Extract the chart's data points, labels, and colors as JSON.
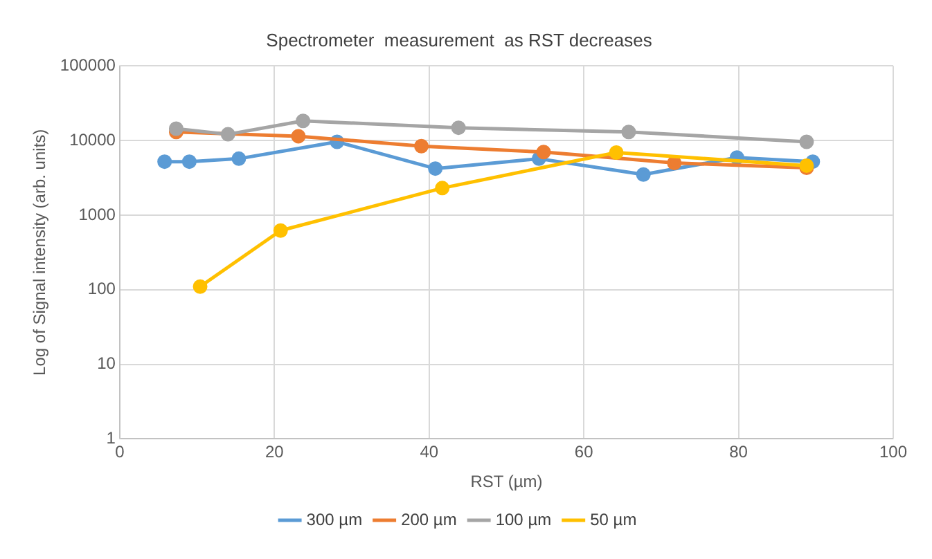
{
  "chart_data": {
    "type": "line",
    "title": "Spectrometer  measurement  as RST decreases",
    "xlabel": "RST (µm)",
    "ylabel": "Log of Signal intensity (arb. units)",
    "log": "y",
    "grid": true,
    "legend": "bottom",
    "marker": "circle",
    "line_style": "solid",
    "xlim": [
      0,
      100
    ],
    "xticks": [
      0,
      20,
      40,
      60,
      80,
      100
    ],
    "ylim": [
      1,
      100000
    ],
    "yticks": [
      1,
      10,
      100,
      1000,
      10000,
      100000
    ],
    "series": [
      {
        "name": "300 µm",
        "color": "#5b9bd5",
        "x": [
          5.8,
          9.0,
          15.4,
          28.1,
          40.8,
          54.2,
          67.7,
          79.8,
          89.6
        ],
        "values": [
          5200,
          5200,
          5700,
          9600,
          4200,
          5700,
          3500,
          5900,
          5200
        ]
      },
      {
        "name": "200 µm",
        "color": "#ed7d31",
        "x": [
          7.3,
          23.1,
          39.0,
          54.8,
          71.7,
          88.8
        ],
        "values": [
          13000,
          11400,
          8400,
          7000,
          5000,
          4300
        ]
      },
      {
        "name": "100 µm",
        "color": "#a5a5a5",
        "x": [
          7.3,
          14.0,
          23.7,
          43.8,
          65.8,
          88.8
        ],
        "values": [
          14400,
          12100,
          18300,
          14800,
          13000,
          9600
        ]
      },
      {
        "name": "50 µm",
        "color": "#ffc000",
        "x": [
          10.4,
          20.8,
          41.7,
          64.2,
          88.8
        ],
        "values": [
          110,
          620,
          2300,
          6900,
          4600
        ]
      }
    ]
  }
}
